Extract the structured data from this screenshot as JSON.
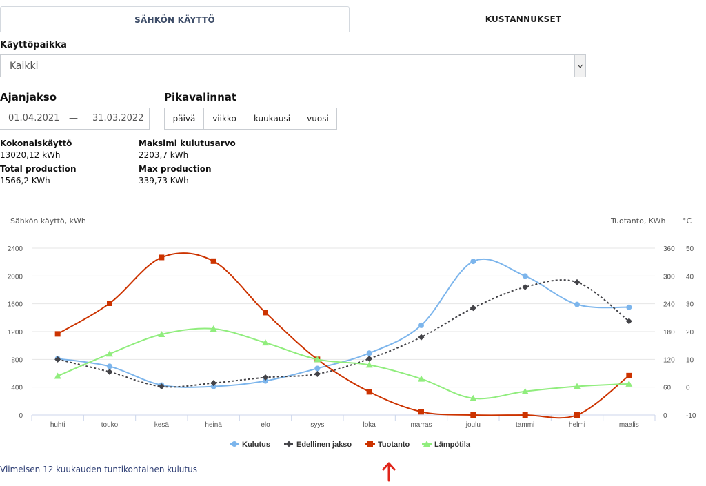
{
  "tabs": [
    {
      "label": "SÄHKÖN KÄYTTÖ",
      "active": true
    },
    {
      "label": "KUSTANNUKSET",
      "active": false
    }
  ],
  "location": {
    "label": "Käyttöpaikka",
    "selected": "Kaikki"
  },
  "period": {
    "label": "Ajanjakso",
    "start": "01.04.2021",
    "separator": "—",
    "end": "31.03.2022"
  },
  "quick": {
    "label": "Pikavalinnat",
    "options": [
      "päivä",
      "viikko",
      "kuukausi",
      "vuosi"
    ]
  },
  "stats": [
    {
      "label": "Kokonaiskäyttö",
      "value": "13020,12 kWh"
    },
    {
      "label": "Maksimi kulutusarvo",
      "value": "2203,7 kWh"
    },
    {
      "label": "Total production",
      "value": "1566,2 KWh"
    },
    {
      "label": "Max production",
      "value": "339,73 KWh"
    }
  ],
  "chart_data": {
    "type": "line",
    "ylabel_left": "Sähkön käyttö, kWh",
    "ylabel_right": "Tuotanto, KWh",
    "ylabel_right2": "°C",
    "categories": [
      "huhti",
      "touko",
      "kesä",
      "heinä",
      "elo",
      "syys",
      "loka",
      "marras",
      "joulu",
      "tammi",
      "helmi",
      "maalis"
    ],
    "y_left": {
      "min": 0,
      "max": 2400,
      "ticks": [
        "0",
        "400",
        "800",
        "1200",
        "1600",
        "2000",
        "2400"
      ]
    },
    "y_right": {
      "min": 0,
      "max": 360,
      "ticks": [
        "0",
        "60",
        "120",
        "180",
        "240",
        "300",
        "360"
      ]
    },
    "y_right2": {
      "min": -10,
      "max": 50,
      "ticks": [
        "-10",
        "0",
        "10",
        "20",
        "30",
        "40",
        "50"
      ]
    },
    "series": [
      {
        "name": "Kulutus",
        "axis": "left",
        "color": "#7cb5ec",
        "marker": "circle",
        "dashed": false,
        "values": [
          810,
          700,
          430,
          410,
          490,
          670,
          890,
          1290,
          2210,
          2000,
          1590,
          1550
        ]
      },
      {
        "name": "Edellinen jakso",
        "axis": "left",
        "color": "#434348",
        "marker": "diamond",
        "dashed": true,
        "values": [
          800,
          620,
          410,
          460,
          540,
          590,
          810,
          1120,
          1540,
          1840,
          1910,
          1350
        ]
      },
      {
        "name": "Tuotanto",
        "axis": "right",
        "color": "#cc3300",
        "marker": "square",
        "dashed": false,
        "values": [
          175,
          241,
          340,
          332,
          221,
          120,
          50,
          7,
          0,
          0,
          0,
          85
        ]
      },
      {
        "name": "Lämpötila",
        "axis": "right2",
        "color": "#90ed7d",
        "marker": "triangle",
        "dashed": false,
        "values": [
          4,
          12,
          19,
          21,
          16,
          10,
          8,
          3,
          -4,
          -1.5,
          0.3,
          1.2
        ]
      }
    ],
    "legend_position": "bottom-center",
    "grid": true
  },
  "footer": {
    "link": "Viimeisen 12 kuukauden tuntikohtainen kulutus"
  },
  "annotation": {
    "icon": "red-arrow-up-icon",
    "color": "#e0241a"
  }
}
